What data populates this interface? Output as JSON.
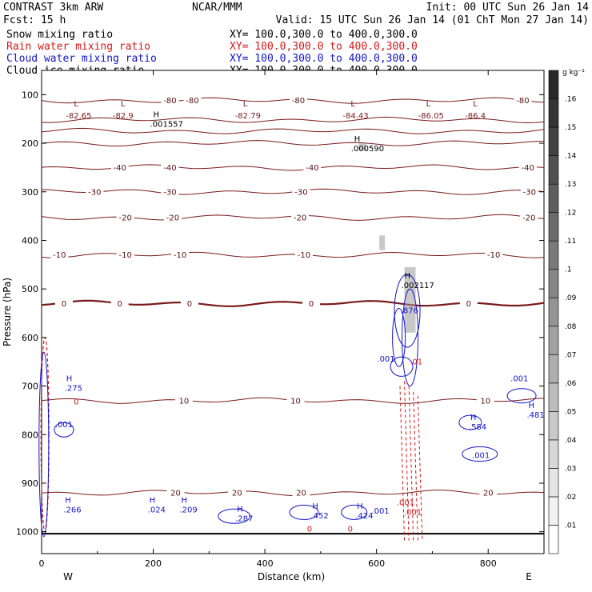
{
  "header": {
    "left1": "CONTRAST  3km ARW",
    "left2": "Fcst:   15 h",
    "center1": "NCAR/MMM",
    "init": "Init: 00 UTC Sun 26 Jan 14",
    "valid": "Valid: 15 UTC Sun 26 Jan 14 (01 ChT Mon 27 Jan 14)"
  },
  "legend": [
    {
      "label": "Snow mixing ratio",
      "xy": "XY= 100.0,300.0 to 400.0,300.0",
      "color": "#000000"
    },
    {
      "label": "Rain water mixing ratio",
      "xy": "XY= 100.0,300.0 to 400.0,300.0",
      "color": "#d21a1a"
    },
    {
      "label": "Cloud water mixing ratio",
      "xy": "XY= 100.0,300.0 to 400.0,300.0",
      "color": "#1414c8"
    },
    {
      "label": "Cloud ice mixing ratio",
      "xy": "XY= 100.0,300.0 to 400.0,300.0",
      "color": "#000000"
    }
  ],
  "chart_data": {
    "type": "contour-cross-section",
    "xlabel": "Distance (km)",
    "ylabel": "Pressure (hPa)",
    "xlim": [
      0,
      900
    ],
    "ylim": [
      1045,
      50
    ],
    "x_ticks": [
      0,
      200,
      400,
      600,
      800
    ],
    "y_ticks": [
      100,
      200,
      300,
      400,
      500,
      600,
      700,
      800,
      900,
      1000
    ],
    "x_end_labels": {
      "west": "W",
      "east": "E"
    },
    "colorbar": {
      "unit": "g kg⁻¹",
      "levels": [
        ".01",
        ".02",
        ".03",
        ".04",
        ".05",
        ".06",
        ".07",
        ".08",
        ".09",
        ".1",
        ".11",
        ".12",
        ".13",
        ".14",
        ".15",
        ".16"
      ]
    },
    "temperature_contours": [
      {
        "level": -80,
        "p": 112,
        "labels": [
          {
            "x": 230,
            "text": "-80"
          },
          {
            "x": 270,
            "text": "-80"
          },
          {
            "x": 460,
            "text": "-80"
          },
          {
            "x": 862,
            "text": "-80"
          }
        ]
      },
      {
        "level": -70,
        "p": 152,
        "labels": []
      },
      {
        "level": -60,
        "p": 175,
        "labels": []
      },
      {
        "level": -50,
        "p": 200,
        "labels": []
      },
      {
        "level": -40,
        "p": 250,
        "labels": [
          {
            "x": 140,
            "text": "-40"
          },
          {
            "x": 230,
            "text": "-40"
          },
          {
            "x": 485,
            "text": "-40"
          },
          {
            "x": 871,
            "text": "-40"
          }
        ]
      },
      {
        "level": -30,
        "p": 300,
        "labels": [
          {
            "x": 95,
            "text": "-30"
          },
          {
            "x": 230,
            "text": "-30"
          },
          {
            "x": 465,
            "text": "-30"
          },
          {
            "x": 874,
            "text": "-30"
          }
        ]
      },
      {
        "level": -20,
        "p": 353,
        "labels": [
          {
            "x": 150,
            "text": "-20"
          },
          {
            "x": 235,
            "text": "-20"
          },
          {
            "x": 463,
            "text": "-20"
          },
          {
            "x": 873,
            "text": "-20"
          }
        ]
      },
      {
        "level": -10,
        "p": 430,
        "labels": [
          {
            "x": 32,
            "text": "-10"
          },
          {
            "x": 150,
            "text": "-10"
          },
          {
            "x": 248,
            "text": "-10"
          },
          {
            "x": 470,
            "text": "-10"
          },
          {
            "x": 810,
            "text": "-10"
          }
        ]
      },
      {
        "level": 0,
        "p": 530,
        "labels": [
          {
            "x": 40,
            "text": "0"
          },
          {
            "x": 140,
            "text": "0"
          },
          {
            "x": 265,
            "text": "0"
          },
          {
            "x": 483,
            "text": "0"
          },
          {
            "x": 765,
            "text": "0"
          }
        ]
      },
      {
        "level": 10,
        "p": 730,
        "labels": [
          {
            "x": 255,
            "text": "10"
          },
          {
            "x": 455,
            "text": "10"
          },
          {
            "x": 795,
            "text": "10"
          }
        ]
      },
      {
        "level": 20,
        "p": 920,
        "labels": [
          {
            "x": 240,
            "text": "20"
          },
          {
            "x": 350,
            "text": "20"
          },
          {
            "x": 465,
            "text": "20"
          },
          {
            "x": 800,
            "text": "20"
          }
        ]
      }
    ],
    "low_labels": [
      {
        "x": 52,
        "p": 88,
        "value": "-82.65"
      },
      {
        "x": 136,
        "p": 88,
        "value": "-82.9"
      },
      {
        "x": 355,
        "p": 88,
        "value": "-82.79"
      },
      {
        "x": 548,
        "p": 88,
        "value": "-84.43"
      },
      {
        "x": 683,
        "p": 88,
        "value": "-86.05"
      },
      {
        "x": 767,
        "p": 88,
        "value": "-86.4"
      }
    ],
    "snow_maxima": [
      {
        "x": 200,
        "p": 153,
        "value": ".001557"
      },
      {
        "x": 560,
        "p": 203,
        "value": ".000590"
      },
      {
        "x": 650,
        "p": 485,
        "value": ".002117"
      }
    ],
    "cloud_water_maxima": [
      {
        "x": 44,
        "p": 700,
        "value": ".275"
      },
      {
        "x": 42,
        "p": 950,
        "value": ".266"
      },
      {
        "x": 193,
        "p": 950,
        "value": ".024"
      },
      {
        "x": 250,
        "p": 950,
        "value": ".209"
      },
      {
        "x": 350,
        "p": 968,
        "value": ".287"
      },
      {
        "x": 485,
        "p": 963,
        "value": ".452"
      },
      {
        "x": 565,
        "p": 963,
        "value": ".424"
      },
      {
        "x": 768,
        "p": 780,
        "value": ".584"
      },
      {
        "x": 872,
        "p": 755,
        "value": ".481"
      }
    ],
    "cloud_water_contour_labels": [
      {
        "x": 40,
        "p": 785,
        "value": ".001"
      },
      {
        "x": 617,
        "p": 650,
        "value": ".001"
      },
      {
        "x": 787,
        "p": 848,
        "value": ".001"
      },
      {
        "x": 856,
        "p": 690,
        "value": ".001"
      },
      {
        "x": 607,
        "p": 963,
        "value": ".001"
      },
      {
        "x": 659,
        "p": 550,
        "value": ".876"
      }
    ],
    "rain_labels": [
      {
        "x": 62,
        "p": 738,
        "value": "0"
      },
      {
        "x": 480,
        "p": 1000,
        "value": "0"
      },
      {
        "x": 553,
        "p": 1000,
        "value": "0"
      },
      {
        "x": 652,
        "p": 945,
        "value": ".001"
      },
      {
        "x": 665,
        "p": 965,
        "value": ".001"
      },
      {
        "x": 671,
        "p": 655,
        "value": ".01"
      }
    ]
  }
}
